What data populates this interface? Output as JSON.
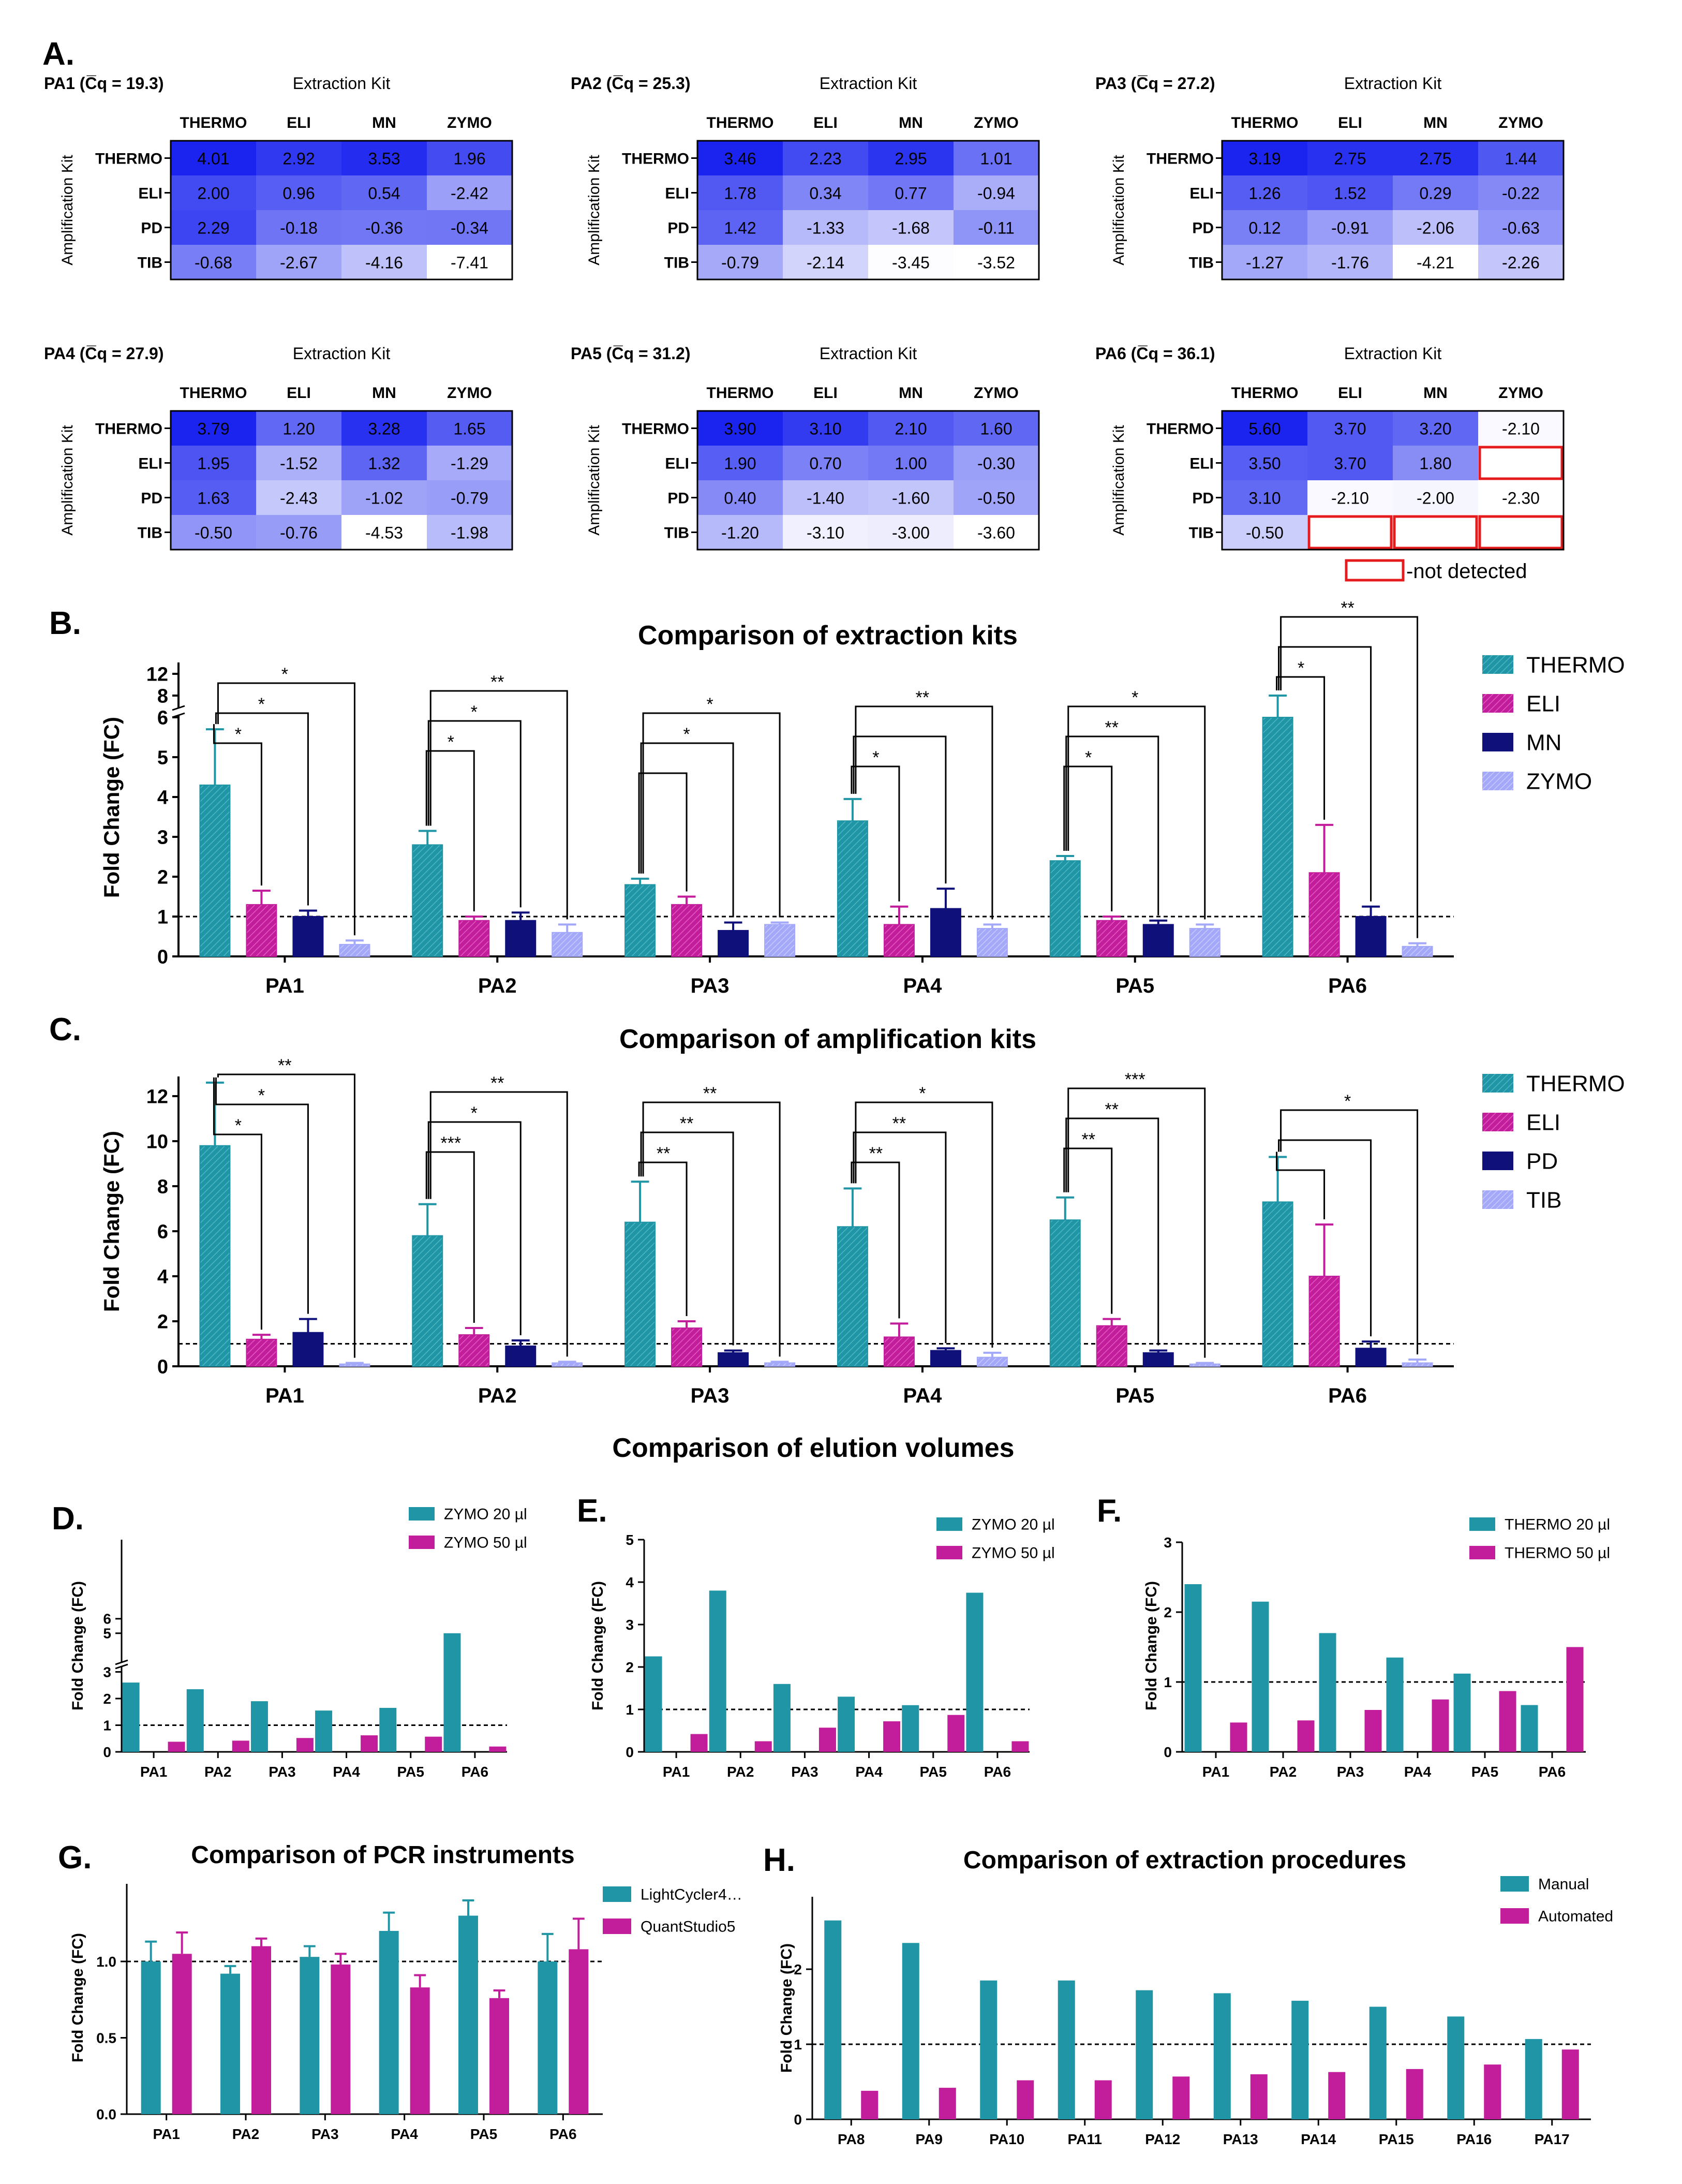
{
  "colors": {
    "teal": "#1f95a5",
    "magenta": "#c21d9a",
    "navy": "#10107a",
    "lavender": "#a3a8f8",
    "heat_high": "#1a24ee",
    "heat_low": "#ffffff",
    "nd_border": "#e41a1c"
  },
  "panels": {
    "A": "A.",
    "B": "B.",
    "C": "C.",
    "D": "D.",
    "E": "E.",
    "F": "F.",
    "G": "G.",
    "H": "H."
  },
  "elution_title": "Comparison of elution volumes",
  "heatmaps_common": {
    "extraction_label": "Extraction Kit",
    "amplification_label": "Amplification Kit",
    "cols": [
      "THERMO",
      "ELI",
      "MN",
      "ZYMO"
    ],
    "rows": [
      "THERMO",
      "ELI",
      "PD",
      "TIB"
    ],
    "legend_text": "-not detected"
  },
  "chart_data": [
    {
      "id": "heatmap-PA1",
      "type": "heatmap",
      "title": "PA1 (C̅q = 19.3)",
      "values": [
        [
          4.01,
          2.92,
          3.53,
          1.96
        ],
        [
          2.0,
          0.96,
          0.54,
          -2.42
        ],
        [
          2.29,
          -0.18,
          -0.36,
          -0.34
        ],
        [
          -0.68,
          -2.67,
          -4.16,
          -7.41
        ]
      ],
      "labels": [
        [
          "4.01",
          "2.92",
          "3.53",
          "1.96"
        ],
        [
          "2.00",
          "0.96",
          "0.54",
          "-2.42"
        ],
        [
          "2.29",
          "-0.18",
          "-0.36",
          "-0.34"
        ],
        [
          "-0.68",
          "-2.67",
          "-4.16",
          "-7.41"
        ]
      ]
    },
    {
      "id": "heatmap-PA2",
      "type": "heatmap",
      "title": "PA2 (C̅q = 25.3)",
      "values": [
        [
          3.46,
          2.23,
          2.95,
          1.01
        ],
        [
          1.78,
          0.34,
          0.77,
          -0.94
        ],
        [
          1.42,
          -1.33,
          -1.68,
          -0.11
        ],
        [
          -0.79,
          -2.14,
          -3.45,
          -3.52
        ]
      ],
      "labels": [
        [
          "3.46",
          "2.23",
          "2.95",
          "1.01"
        ],
        [
          "1.78",
          "0.34",
          "0.77",
          "-0.94"
        ],
        [
          "1.42",
          "-1.33",
          "-1.68",
          "-0.11"
        ],
        [
          "-0.79",
          "-2.14",
          "-3.45",
          "-3.52"
        ]
      ]
    },
    {
      "id": "heatmap-PA3",
      "type": "heatmap",
      "title": "PA3 (C̅q = 27.2)",
      "values": [
        [
          3.19,
          2.75,
          2.75,
          1.44
        ],
        [
          1.26,
          1.52,
          0.29,
          -0.22
        ],
        [
          0.12,
          -0.91,
          -2.06,
          -0.63
        ],
        [
          -1.27,
          -1.76,
          -4.21,
          -2.26
        ]
      ],
      "labels": [
        [
          "3.19",
          "2.75",
          "2.75",
          "1.44"
        ],
        [
          "1.26",
          "1.52",
          "0.29",
          "-0.22"
        ],
        [
          "0.12",
          "-0.91",
          "-2.06",
          "-0.63"
        ],
        [
          "-1.27",
          "-1.76",
          "-4.21",
          "-2.26"
        ]
      ]
    },
    {
      "id": "heatmap-PA4",
      "type": "heatmap",
      "title": "PA4 (C̅q = 27.9)",
      "values": [
        [
          3.79,
          1.2,
          3.28,
          1.65
        ],
        [
          1.95,
          -1.52,
          1.32,
          -1.29
        ],
        [
          1.63,
          -2.43,
          -1.02,
          -0.79
        ],
        [
          -0.5,
          -0.76,
          -4.53,
          -1.98
        ]
      ],
      "labels": [
        [
          "3.79",
          "1.20",
          "3.28",
          "1.65"
        ],
        [
          "1.95",
          "-1.52",
          "1.32",
          "-1.29"
        ],
        [
          "1.63",
          "-2.43",
          "-1.02",
          "-0.79"
        ],
        [
          "-0.50",
          "-0.76",
          "-4.53",
          "-1.98"
        ]
      ]
    },
    {
      "id": "heatmap-PA5",
      "type": "heatmap",
      "title": "PA5 (C̅q = 31.2)",
      "values": [
        [
          3.9,
          3.1,
          2.1,
          1.6
        ],
        [
          1.9,
          0.7,
          1.0,
          -0.3
        ],
        [
          0.4,
          -1.4,
          -1.6,
          -0.5
        ],
        [
          -1.2,
          -3.1,
          -3.0,
          -3.6
        ]
      ],
      "labels": [
        [
          "3.90",
          "3.10",
          "2.10",
          "1.60"
        ],
        [
          "1.90",
          "0.70",
          "1.00",
          "-0.30"
        ],
        [
          "0.40",
          "-1.40",
          "-1.60",
          "-0.50"
        ],
        [
          "-1.20",
          "-3.10",
          "-3.00",
          "-3.60"
        ]
      ]
    },
    {
      "id": "heatmap-PA6",
      "type": "heatmap",
      "title": "PA6 (C̅q = 36.1)",
      "values": [
        [
          5.6,
          3.7,
          3.2,
          -2.1
        ],
        [
          3.5,
          3.7,
          1.8,
          null
        ],
        [
          3.1,
          -2.1,
          -2.0,
          -2.3
        ],
        [
          -0.5,
          null,
          null,
          null
        ]
      ],
      "labels": [
        [
          "5.60",
          "3.70",
          "3.20",
          "-2.10"
        ],
        [
          "3.50",
          "3.70",
          "1.80",
          ""
        ],
        [
          "3.10",
          "-2.10",
          "-2.00",
          "-2.30"
        ],
        [
          "-0.50",
          "",
          "",
          ""
        ]
      ]
    },
    {
      "id": "panel-B",
      "type": "bar",
      "title": "Comparison of extraction kits",
      "ylabel": "Fold Change (FC)",
      "categories": [
        "PA1",
        "PA2",
        "PA3",
        "PA4",
        "PA5",
        "PA6"
      ],
      "yticks": [
        "0",
        "1",
        "2",
        "3",
        "4",
        "5",
        "6",
        "8",
        "12"
      ],
      "ref_line": 1,
      "series": [
        {
          "name": "THERMO",
          "values": [
            4.3,
            2.8,
            1.8,
            3.4,
            2.4,
            6.0
          ],
          "errors": [
            1.4,
            0.35,
            0.15,
            0.55,
            0.12,
            1.2
          ]
        },
        {
          "name": "ELI",
          "values": [
            1.3,
            0.9,
            1.3,
            0.8,
            0.9,
            2.1
          ],
          "errors": [
            0.35,
            0.1,
            0.2,
            0.45,
            0.1,
            1.2
          ]
        },
        {
          "name": "MN",
          "values": [
            1.0,
            0.9,
            0.65,
            1.2,
            0.8,
            1.0
          ],
          "errors": [
            0.15,
            0.2,
            0.2,
            0.5,
            0.1,
            0.25
          ]
        },
        {
          "name": "ZYMO",
          "values": [
            0.3,
            0.6,
            0.8,
            0.7,
            0.7,
            0.25
          ],
          "errors": [
            0.1,
            0.2,
            0.05,
            0.1,
            0.1,
            0.08
          ]
        }
      ],
      "significance": [
        {
          "group": "PA1",
          "to": 1,
          "mark": "*"
        },
        {
          "group": "PA1",
          "to": 2,
          "mark": "*"
        },
        {
          "group": "PA1",
          "to": 3,
          "mark": "*"
        },
        {
          "group": "PA2",
          "to": 1,
          "mark": "*"
        },
        {
          "group": "PA2",
          "to": 2,
          "mark": "*"
        },
        {
          "group": "PA2",
          "to": 3,
          "mark": "**"
        },
        {
          "group": "PA3",
          "to": 1,
          "mark": ""
        },
        {
          "group": "PA3",
          "to": 2,
          "mark": "*"
        },
        {
          "group": "PA3",
          "to": 3,
          "mark": "*"
        },
        {
          "group": "PA4",
          "to": 1,
          "mark": "*"
        },
        {
          "group": "PA4",
          "to": 2,
          "mark": ""
        },
        {
          "group": "PA4",
          "to": 3,
          "mark": "**"
        },
        {
          "group": "PA5",
          "to": 1,
          "mark": "*"
        },
        {
          "group": "PA5",
          "to": 2,
          "mark": "**"
        },
        {
          "group": "PA5",
          "to": 3,
          "mark": "*"
        },
        {
          "group": "PA6",
          "to": 1,
          "mark": "*"
        },
        {
          "group": "PA6",
          "to": 2,
          "mark": ""
        },
        {
          "group": "PA6",
          "to": 3,
          "mark": "**"
        }
      ]
    },
    {
      "id": "panel-C",
      "type": "bar",
      "title": "Comparison of amplification  kits",
      "ylabel": "Fold Change (FC)",
      "categories": [
        "PA1",
        "PA2",
        "PA3",
        "PA4",
        "PA5",
        "PA6"
      ],
      "yticks": [
        "0",
        "2",
        "4",
        "6",
        "8",
        "10",
        "12"
      ],
      "ylim": [
        0,
        13
      ],
      "ref_line": 1,
      "series": [
        {
          "name": "THERMO",
          "values": [
            9.8,
            5.8,
            6.4,
            6.2,
            6.5,
            7.3
          ],
          "errors": [
            2.8,
            1.4,
            1.8,
            1.7,
            1.0,
            2.0
          ]
        },
        {
          "name": "ELI",
          "values": [
            1.2,
            1.4,
            1.7,
            1.3,
            1.8,
            4.0
          ],
          "errors": [
            0.2,
            0.3,
            0.3,
            0.6,
            0.3,
            2.3
          ]
        },
        {
          "name": "PD",
          "values": [
            1.5,
            0.9,
            0.6,
            0.7,
            0.6,
            0.8
          ],
          "errors": [
            0.6,
            0.25,
            0.1,
            0.1,
            0.1,
            0.3
          ]
        },
        {
          "name": "TIB",
          "values": [
            0.1,
            0.15,
            0.15,
            0.4,
            0.1,
            0.15
          ],
          "errors": [
            0.05,
            0.05,
            0.05,
            0.2,
            0.05,
            0.15
          ]
        }
      ],
      "significance": [
        {
          "group": "PA1",
          "to": 1,
          "mark": "*"
        },
        {
          "group": "PA1",
          "to": 2,
          "mark": "*"
        },
        {
          "group": "PA1",
          "to": 3,
          "mark": "**"
        },
        {
          "group": "PA2",
          "to": 1,
          "mark": "***"
        },
        {
          "group": "PA2",
          "to": 2,
          "mark": "*"
        },
        {
          "group": "PA2",
          "to": 3,
          "mark": "**"
        },
        {
          "group": "PA3",
          "to": 1,
          "mark": "**"
        },
        {
          "group": "PA3",
          "to": 2,
          "mark": "**"
        },
        {
          "group": "PA3",
          "to": 3,
          "mark": "**"
        },
        {
          "group": "PA4",
          "to": 1,
          "mark": "**"
        },
        {
          "group": "PA4",
          "to": 2,
          "mark": "**"
        },
        {
          "group": "PA4",
          "to": 3,
          "mark": "*"
        },
        {
          "group": "PA5",
          "to": 1,
          "mark": "**"
        },
        {
          "group": "PA5",
          "to": 2,
          "mark": "**"
        },
        {
          "group": "PA5",
          "to": 3,
          "mark": "***"
        },
        {
          "group": "PA6",
          "to": 1,
          "mark": ""
        },
        {
          "group": "PA6",
          "to": 2,
          "mark": ""
        },
        {
          "group": "PA6",
          "to": 3,
          "mark": "*"
        }
      ]
    },
    {
      "id": "panel-D",
      "type": "bar",
      "title": "",
      "ylabel": "Fold Change (FC)",
      "categories": [
        "PA1",
        "PA2",
        "PA3",
        "PA4",
        "PA5",
        "PA6"
      ],
      "yticks": [
        "0",
        "1",
        "2",
        "3",
        "5",
        "6"
      ],
      "ref_line": 1,
      "series": [
        {
          "name": "ZYMO 20 µl",
          "values": [
            2.6,
            2.35,
            1.9,
            1.55,
            1.65,
            5.0
          ]
        },
        {
          "name": "ZYMO 50 µl",
          "values": [
            0.38,
            0.42,
            0.52,
            0.62,
            0.57,
            0.2
          ]
        }
      ]
    },
    {
      "id": "panel-E",
      "type": "bar",
      "title": "",
      "ylabel": "Fold Change (FC)",
      "categories": [
        "PA1",
        "PA2",
        "PA3",
        "PA4",
        "PA5",
        "PA6"
      ],
      "yticks": [
        "0",
        "1",
        "2",
        "3",
        "4",
        "5"
      ],
      "ylim": [
        0,
        5
      ],
      "ref_line": 1,
      "series": [
        {
          "name": "ZYMO 20 µl",
          "values": [
            2.25,
            3.8,
            1.6,
            1.3,
            1.1,
            3.75
          ]
        },
        {
          "name": "ZYMO 50 µl",
          "values": [
            0.42,
            0.25,
            0.57,
            0.72,
            0.87,
            0.25
          ]
        }
      ]
    },
    {
      "id": "panel-F",
      "type": "bar",
      "title": "",
      "ylabel": "Fold Change (FC)",
      "categories": [
        "PA1",
        "PA2",
        "PA3",
        "PA4",
        "PA5",
        "PA6"
      ],
      "yticks": [
        "0",
        "1",
        "2",
        "3"
      ],
      "ylim": [
        0,
        3
      ],
      "ref_line": 1,
      "series": [
        {
          "name": "THERMO 20 µl",
          "values": [
            2.4,
            2.15,
            1.7,
            1.35,
            1.12,
            0.67
          ]
        },
        {
          "name": "THERMO 50 µl",
          "values": [
            0.42,
            0.45,
            0.6,
            0.75,
            0.87,
            1.5
          ]
        }
      ]
    },
    {
      "id": "panel-G",
      "type": "bar",
      "title": "Comparison of PCR instruments",
      "ylabel": "Fold Change (FC)",
      "categories": [
        "PA1",
        "PA2",
        "PA3",
        "PA4",
        "PA5",
        "PA6"
      ],
      "yticks": [
        "0.0",
        "0.5",
        "1.0"
      ],
      "ylim": [
        0,
        1.5
      ],
      "ref_line": 1,
      "series": [
        {
          "name": "LightCycler4…",
          "values": [
            1.0,
            0.92,
            1.03,
            1.2,
            1.3,
            1.0
          ],
          "errors": [
            0.13,
            0.05,
            0.07,
            0.12,
            0.1,
            0.18
          ]
        },
        {
          "name": "QuantStudio5",
          "values": [
            1.05,
            1.1,
            0.98,
            0.83,
            0.76,
            1.08
          ],
          "errors": [
            0.14,
            0.05,
            0.07,
            0.08,
            0.05,
            0.2
          ]
        }
      ]
    },
    {
      "id": "panel-H",
      "type": "bar",
      "title": "Comparison of extraction procedures",
      "ylabel": "Fold Change (FC)",
      "categories": [
        "PA8",
        "PA9",
        "PA10",
        "PA11",
        "PA12",
        "PA13",
        "PA14",
        "PA15",
        "PA16",
        "PA17"
      ],
      "yticks": [
        "0",
        "1",
        "2"
      ],
      "ylim": [
        0,
        2.9
      ],
      "ref_line": 1,
      "series": [
        {
          "name": "Manual",
          "values": [
            2.65,
            2.35,
            1.85,
            1.85,
            1.72,
            1.68,
            1.58,
            1.5,
            1.37,
            1.07
          ]
        },
        {
          "name": "Automated",
          "values": [
            0.38,
            0.42,
            0.52,
            0.52,
            0.57,
            0.6,
            0.63,
            0.67,
            0.73,
            0.93
          ]
        }
      ]
    }
  ]
}
